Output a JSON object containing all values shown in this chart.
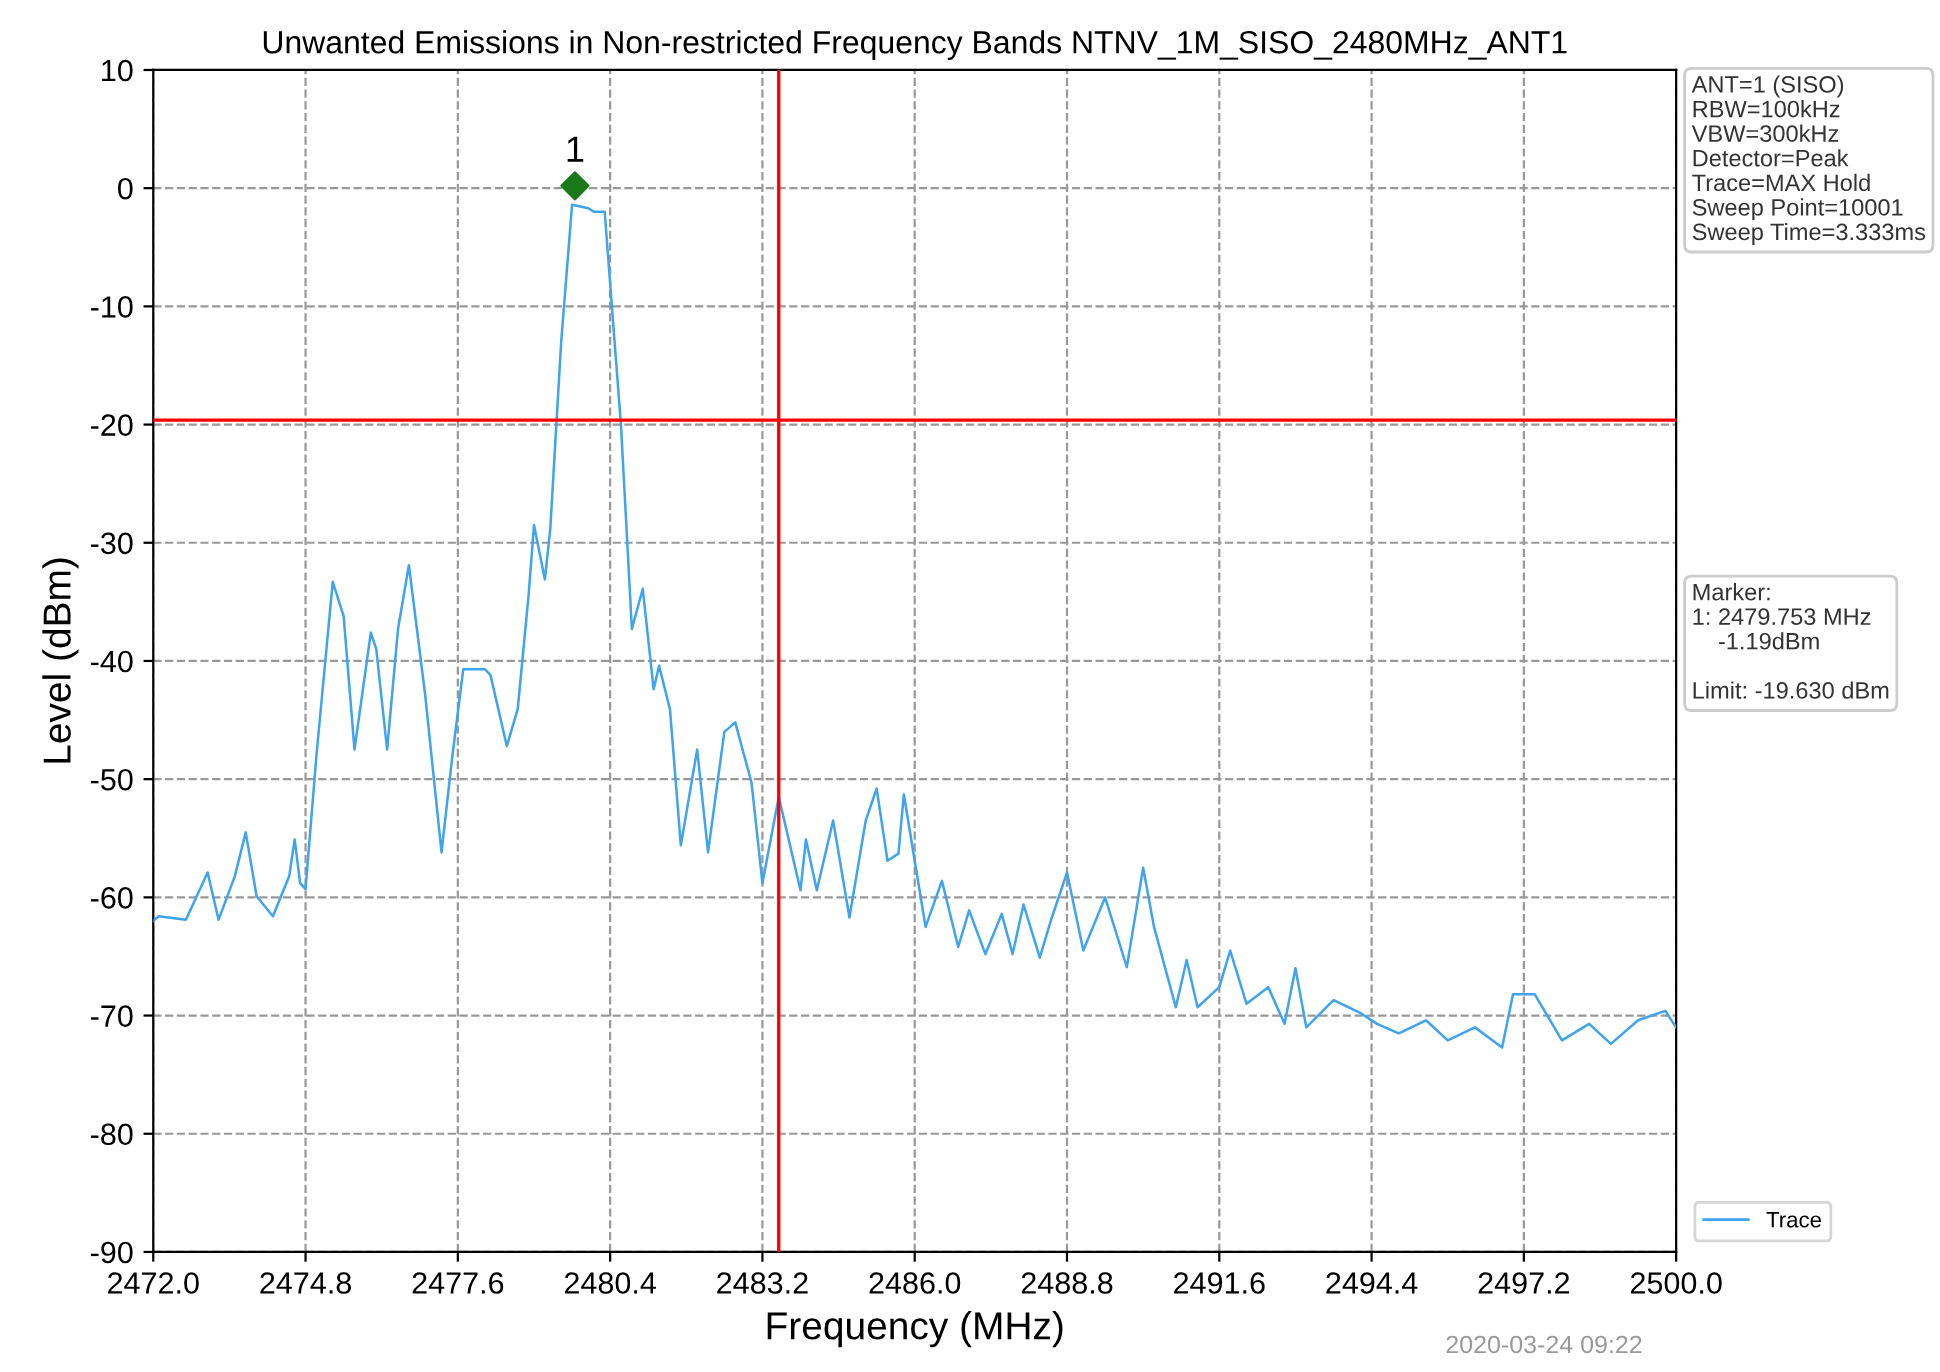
{
  "chart_data": {
    "type": "line",
    "title": "Unwanted Emissions in Non-restricted Frequency Bands NTNV_1M_SISO_2480MHz_ANT1",
    "xlabel": "Frequency (MHz)",
    "ylabel": "Level (dBm)",
    "xlim": [
      2472.0,
      2500.0
    ],
    "xticks": [
      {
        "value": 2472.0,
        "label": "2472.0"
      },
      {
        "value": 2474.8,
        "label": "2474.8"
      },
      {
        "value": 2477.6,
        "label": "2477.6"
      },
      {
        "value": 2480.4,
        "label": "2480.4"
      },
      {
        "value": 2483.2,
        "label": "2483.2"
      },
      {
        "value": 2486.0,
        "label": "2486.0"
      },
      {
        "value": 2488.8,
        "label": "2488.8"
      },
      {
        "value": 2491.6,
        "label": "2491.6"
      },
      {
        "value": 2494.4,
        "label": "2494.4"
      },
      {
        "value": 2497.2,
        "label": "2497.2"
      },
      {
        "value": 2500.0,
        "label": "2500.0"
      }
    ],
    "ylim": [
      -90,
      10
    ],
    "yticks": [
      -90,
      -80,
      -70,
      -60,
      -50,
      -40,
      -30,
      -20,
      -10,
      0,
      10
    ],
    "grid": true,
    "legend": "bottom right",
    "line_style": "solid",
    "series": [
      {
        "name": "Trace",
        "color": "#3fa3f0",
        "x": [
          2472.0,
          2472.1,
          2472.6,
          2473.0,
          2473.2,
          2473.5,
          2473.7,
          2473.9,
          2474.2,
          2474.5,
          2474.6,
          2474.7,
          2474.8,
          2475.0,
          2475.3,
          2475.5,
          2475.7,
          2476.0,
          2476.1,
          2476.3,
          2476.5,
          2476.7,
          2477.0,
          2477.3,
          2477.5,
          2477.7,
          2478.1,
          2478.2,
          2478.5,
          2478.7,
          2478.9,
          2479.0,
          2479.2,
          2479.3,
          2479.5,
          2479.7,
          2480.0,
          2480.1,
          2480.3,
          2480.5,
          2480.6,
          2480.8,
          2481.0,
          2481.2,
          2481.3,
          2481.5,
          2481.7,
          2482.0,
          2482.2,
          2482.5,
          2482.7,
          2483.0,
          2483.2,
          2483.5,
          2483.9,
          2484.0,
          2484.2,
          2484.5,
          2484.8,
          2485.1,
          2485.3,
          2485.5,
          2485.7,
          2485.8,
          2486.0,
          2486.2,
          2486.5,
          2486.8,
          2487.0,
          2487.3,
          2487.6,
          2487.8,
          2488.0,
          2488.3,
          2488.5,
          2488.8,
          2489.1,
          2489.5,
          2489.9,
          2490.2,
          2490.4,
          2490.8,
          2491.0,
          2491.2,
          2491.6,
          2491.8,
          2492.1,
          2492.5,
          2492.8,
          2493.0,
          2493.2,
          2493.7,
          2494.2,
          2494.5,
          2494.9,
          2495.4,
          2495.8,
          2496.3,
          2496.8,
          2497.0,
          2497.4,
          2497.9,
          2498.4,
          2498.8,
          2499.3,
          2499.8,
          2500.0
        ],
        "values": [
          -62,
          -61.6,
          -61.9,
          -57.9,
          -61.9,
          -58.2,
          -54.5,
          -59.9,
          -61.6,
          -58.2,
          -55.1,
          -58.8,
          -59.3,
          -48.0,
          -33.3,
          -36.2,
          -47.5,
          -37.6,
          -39.0,
          -47.5,
          -37.3,
          -31.9,
          -42.9,
          -56.2,
          -48.0,
          -40.7,
          -40.7,
          -41.2,
          -47.2,
          -44.1,
          -34.5,
          -28.5,
          -33.1,
          -28.8,
          -13.0,
          -1.4,
          -1.7,
          -2.0,
          -2.0,
          -14.1,
          -20.1,
          -37.3,
          -33.9,
          -42.4,
          -40.4,
          -44.1,
          -55.6,
          -47.5,
          -56.2,
          -46.0,
          -45.2,
          -50.3,
          -58.8,
          -51.5,
          -59.4,
          -55.1,
          -59.4,
          -53.5,
          -61.7,
          -53.5,
          -50.8,
          -56.9,
          -56.3,
          -51.3,
          -56.9,
          -62.5,
          -58.6,
          -64.2,
          -61.1,
          -64.8,
          -61.4,
          -64.8,
          -60.6,
          -65.1,
          -62.0,
          -57.9,
          -64.5,
          -60.0,
          -65.9,
          -57.5,
          -62.5,
          -69.3,
          -65.3,
          -69.3,
          -67.6,
          -64.5,
          -69.0,
          -67.6,
          -70.7,
          -66.0,
          -71.0,
          -68.7,
          -69.8,
          -70.7,
          -71.5,
          -70.4,
          -72.1,
          -71.0,
          -72.7,
          -68.2,
          -68.2,
          -72.1,
          -70.7,
          -72.4,
          -70.4,
          -69.6,
          -71.0
        ]
      },
      {
        "color": "#1a7a1a",
        "type": "scatter",
        "marker": "diamond",
        "x": [
          2479.753
        ],
        "values": [
          0.2
        ]
      }
    ],
    "ref_lines": [
      {
        "axis": "y",
        "value": -19.63,
        "color": "#ff0000"
      },
      {
        "axis": "x",
        "value": 2483.5,
        "color": "#ff0000"
      }
    ],
    "annotations": [
      {
        "text": "1",
        "x": 2479.753,
        "y": 0.2
      },
      "ANT=1 (SISO)\nRBW=100kHz\nVBW=300kHz\nDetector=Peak\nTrace=MAX Hold\nSweep Point=10001\nSweep Time=3.333ms",
      "Marker:\n1: 2479.753 MHz\n    -1.19dBm\n\nLimit: -19.630 dBm",
      "2020-03-24 09:22"
    ]
  }
}
